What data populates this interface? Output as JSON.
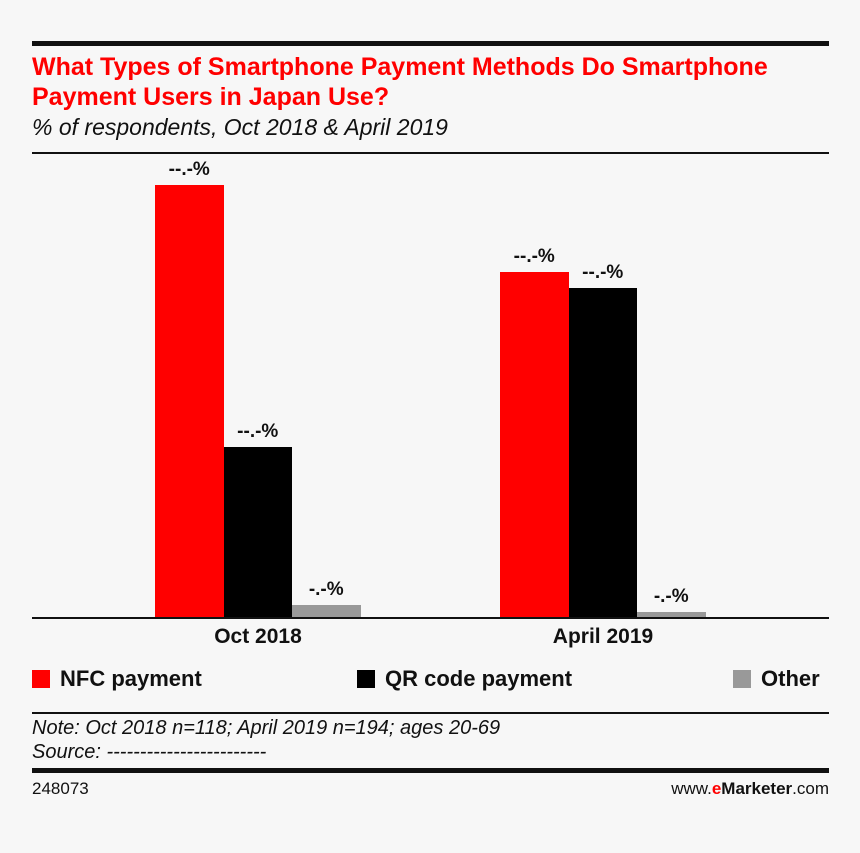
{
  "chart_data": {
    "type": "bar",
    "title": "What Types of Smartphone Payment Methods Do Smartphone Payment Users in Japan Use?",
    "subtitle": "% of respondents, Oct 2018 & April 2019",
    "categories": [
      "Oct 2018",
      "April 2019"
    ],
    "series": [
      {
        "name": "NFC payment",
        "color": "#ff0000",
        "values": [
          86.6,
          69.2
        ],
        "labels": [
          "--.-%",
          "--.-%"
        ]
      },
      {
        "name": "QR code payment",
        "color": "#000000",
        "values": [
          34.2,
          66.0
        ],
        "labels": [
          "--.-%",
          "--.-%"
        ]
      },
      {
        "name": "Other",
        "color": "#999999",
        "values": [
          2.6,
          1.2
        ],
        "labels": [
          "-.-%",
          "-.-%"
        ]
      }
    ],
    "legend_position": "bottom",
    "grid": false,
    "note": "Note: Oct 2018 n=118; April 2019 n=194; ages 20-69",
    "source": "Source: ------------------------"
  },
  "footer": {
    "id": "248073",
    "brand_prefix": "www.",
    "brand_e": "e",
    "brand_name": "Marketer",
    "brand_suffix": ".com"
  }
}
